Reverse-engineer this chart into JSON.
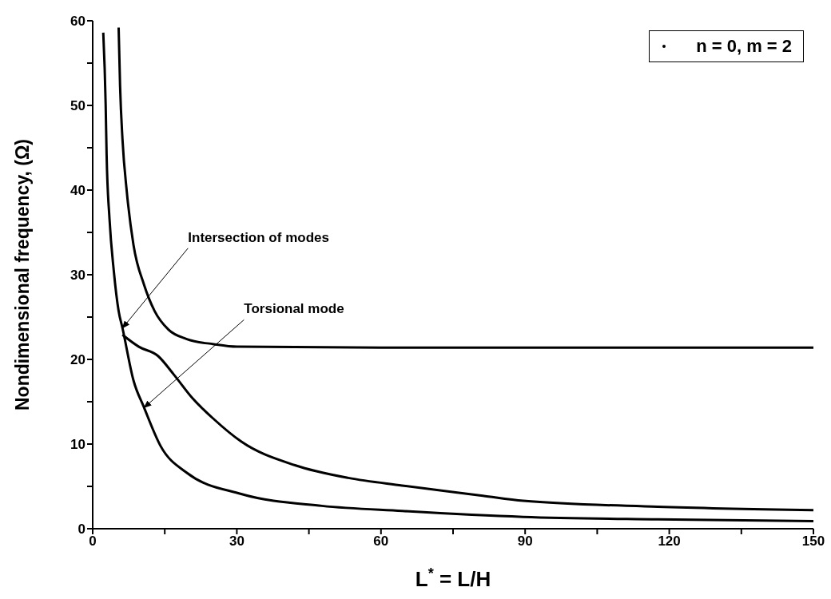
{
  "chart_data": {
    "type": "line",
    "xlabel": "L$^{*}$ = L/H",
    "ylabel": "Nondimensional frequency, (Ω)",
    "xlim": [
      0,
      150
    ],
    "ylim": [
      0,
      60
    ],
    "xticks": [
      0,
      {
        "value": 15,
        "label": null
      },
      30,
      {
        "value": 45,
        "label": null
      },
      60,
      {
        "value": 75,
        "label": null
      },
      90,
      {
        "value": 105,
        "label": null
      },
      120,
      {
        "value": 135,
        "label": null
      },
      150
    ],
    "yticks": [
      0,
      {
        "value": 5,
        "label": null
      },
      10,
      {
        "value": 15,
        "label": null
      },
      20,
      {
        "value": 25,
        "label": null
      },
      30,
      {
        "value": 35,
        "label": null
      },
      40,
      {
        "value": 45,
        "label": null
      },
      50,
      {
        "value": 55,
        "label": null
      },
      60
    ],
    "grid": false,
    "legend": "top right",
    "line_style": "solid",
    "series": [
      {
        "name": "n = 0, m = 2",
        "color": "#000000",
        "x": [
          2.2,
          2.7,
          2.9,
          3.5,
          4.4,
          5.4,
          6.2,
          8.5,
          10.7,
          14.1,
          19.6,
          30.9,
          47.7,
          64.4,
          89.6,
          117.6,
          150
        ],
        "values": [
          58.6,
          50.1,
          44.1,
          36.6,
          30.4,
          25.7,
          23.7,
          17.5,
          14.3,
          9.8,
          6.6,
          4.1,
          2.7,
          2.1,
          1.4,
          1.1,
          0.9
        ]
      },
      {
        "color": "#000000",
        "x": [
          6.2,
          9.6,
          13.6,
          16.9,
          20.8,
          25.3,
          30.9,
          42.1,
          53.2,
          64.4,
          81.2,
          89.6,
          117.6,
          150
        ],
        "values": [
          22.9,
          21.5,
          20.4,
          18.2,
          15.4,
          12.9,
          10.3,
          7.5,
          6.0,
          5.1,
          3.9,
          3.3,
          2.6,
          2.2
        ]
      },
      {
        "color": "#000000",
        "x": [
          5.4,
          5.7,
          6.2,
          7.1,
          8.5,
          10.7,
          12.9,
          15.8,
          19.6,
          25.2,
          30,
          60,
          90,
          120,
          150
        ],
        "values": [
          59.2,
          52.3,
          46.0,
          39.8,
          33.5,
          28.8,
          25.7,
          23.5,
          22.4,
          21.8,
          21.5,
          21.4,
          21.4,
          21.4,
          21.4
        ]
      }
    ],
    "annotations": [
      {
        "text": "Intersection of modes",
        "x": 6.2,
        "y": 23.7
      },
      {
        "text": "Torsional mode",
        "x": 10.7,
        "y": 14.3
      }
    ]
  }
}
